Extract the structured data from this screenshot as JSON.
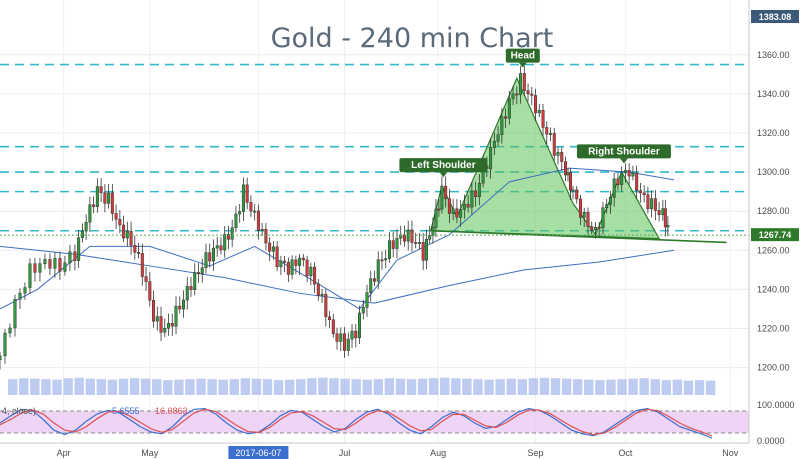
{
  "chart_data": {
    "type": "candlestick",
    "title": "Gold - 240 min Chart",
    "x_labels": [
      "Apr",
      "May",
      "2017-06-07",
      "Jul",
      "Aug",
      "Sep",
      "Oct",
      "Nov"
    ],
    "y_ticks": [
      1200,
      1220,
      1240,
      1260,
      1280,
      1300,
      1320,
      1340,
      1360
    ],
    "ylim": [
      1186,
      1388
    ],
    "price_tags": {
      "top": "1383.08",
      "last": "1267.74",
      "last_value": 1267.74
    },
    "horizontal_levels": [
      1355,
      1313,
      1300,
      1290,
      1270
    ],
    "neckline": {
      "from": [
        0.575,
        1270
      ],
      "to": [
        0.97,
        1264
      ]
    },
    "pattern_peaks": [
      {
        "x": 0.575,
        "y": 1270
      },
      {
        "x": 0.59,
        "y": 1293
      },
      {
        "x": 0.61,
        "y": 1277
      },
      {
        "x": 0.69,
        "y": 1348
      },
      {
        "x": 0.765,
        "y": 1284
      },
      {
        "x": 0.795,
        "y": 1268
      },
      {
        "x": 0.83,
        "y": 1300
      },
      {
        "x": 0.88,
        "y": 1266
      }
    ],
    "annotations": [
      {
        "label": "Left Shoulder",
        "x": 0.592,
        "y": 1300
      },
      {
        "label": "Head",
        "x": 0.698,
        "y": 1356
      },
      {
        "label": "Right Shoulder",
        "x": 0.833,
        "y": 1307
      }
    ],
    "close_path": [
      {
        "x": 0.0,
        "y": 1206
      },
      {
        "x": 0.02,
        "y": 1232
      },
      {
        "x": 0.04,
        "y": 1250
      },
      {
        "x": 0.06,
        "y": 1255
      },
      {
        "x": 0.08,
        "y": 1252
      },
      {
        "x": 0.1,
        "y": 1258
      },
      {
        "x": 0.115,
        "y": 1275
      },
      {
        "x": 0.13,
        "y": 1290
      },
      {
        "x": 0.145,
        "y": 1286
      },
      {
        "x": 0.16,
        "y": 1272
      },
      {
        "x": 0.175,
        "y": 1265
      },
      {
        "x": 0.19,
        "y": 1250
      },
      {
        "x": 0.205,
        "y": 1225
      },
      {
        "x": 0.22,
        "y": 1218
      },
      {
        "x": 0.235,
        "y": 1228
      },
      {
        "x": 0.25,
        "y": 1240
      },
      {
        "x": 0.265,
        "y": 1250
      },
      {
        "x": 0.28,
        "y": 1258
      },
      {
        "x": 0.295,
        "y": 1262
      },
      {
        "x": 0.31,
        "y": 1270
      },
      {
        "x": 0.325,
        "y": 1290
      },
      {
        "x": 0.34,
        "y": 1278
      },
      {
        "x": 0.355,
        "y": 1265
      },
      {
        "x": 0.37,
        "y": 1255
      },
      {
        "x": 0.385,
        "y": 1250
      },
      {
        "x": 0.4,
        "y": 1255
      },
      {
        "x": 0.415,
        "y": 1248
      },
      {
        "x": 0.43,
        "y": 1235
      },
      {
        "x": 0.445,
        "y": 1218
      },
      {
        "x": 0.46,
        "y": 1212
      },
      {
        "x": 0.475,
        "y": 1218
      },
      {
        "x": 0.49,
        "y": 1238
      },
      {
        "x": 0.505,
        "y": 1252
      },
      {
        "x": 0.52,
        "y": 1262
      },
      {
        "x": 0.535,
        "y": 1268
      },
      {
        "x": 0.55,
        "y": 1267
      },
      {
        "x": 0.565,
        "y": 1258
      },
      {
        "x": 0.578,
        "y": 1272
      },
      {
        "x": 0.59,
        "y": 1290
      },
      {
        "x": 0.605,
        "y": 1278
      },
      {
        "x": 0.62,
        "y": 1283
      },
      {
        "x": 0.635,
        "y": 1290
      },
      {
        "x": 0.65,
        "y": 1305
      },
      {
        "x": 0.665,
        "y": 1320
      },
      {
        "x": 0.68,
        "y": 1335
      },
      {
        "x": 0.695,
        "y": 1347
      },
      {
        "x": 0.71,
        "y": 1338
      },
      {
        "x": 0.725,
        "y": 1325
      },
      {
        "x": 0.74,
        "y": 1312
      },
      {
        "x": 0.755,
        "y": 1300
      },
      {
        "x": 0.765,
        "y": 1289
      },
      {
        "x": 0.78,
        "y": 1276
      },
      {
        "x": 0.795,
        "y": 1270
      },
      {
        "x": 0.81,
        "y": 1285
      },
      {
        "x": 0.825,
        "y": 1297
      },
      {
        "x": 0.84,
        "y": 1300
      },
      {
        "x": 0.855,
        "y": 1288
      },
      {
        "x": 0.87,
        "y": 1283
      },
      {
        "x": 0.885,
        "y": 1279
      },
      {
        "x": 0.895,
        "y": 1268
      }
    ],
    "moving_averages": [
      {
        "name": "",
        "color": "#3e6ec0",
        "points": [
          {
            "x": 0.0,
            "y": 1262
          },
          {
            "x": 0.1,
            "y": 1258
          },
          {
            "x": 0.2,
            "y": 1252
          },
          {
            "x": 0.3,
            "y": 1246
          },
          {
            "x": 0.4,
            "y": 1238
          },
          {
            "x": 0.5,
            "y": 1233
          },
          {
            "x": 0.6,
            "y": 1242
          },
          {
            "x": 0.7,
            "y": 1250
          },
          {
            "x": 0.8,
            "y": 1254
          },
          {
            "x": 0.9,
            "y": 1260
          }
        ]
      },
      {
        "name": "",
        "color": "#3e6ec0",
        "points": [
          {
            "x": 0.0,
            "y": 1230
          },
          {
            "x": 0.05,
            "y": 1240
          },
          {
            "x": 0.12,
            "y": 1262
          },
          {
            "x": 0.2,
            "y": 1262
          },
          {
            "x": 0.28,
            "y": 1252
          },
          {
            "x": 0.34,
            "y": 1262
          },
          {
            "x": 0.42,
            "y": 1244
          },
          {
            "x": 0.48,
            "y": 1230
          },
          {
            "x": 0.53,
            "y": 1255
          },
          {
            "x": 0.6,
            "y": 1268
          },
          {
            "x": 0.68,
            "y": 1295
          },
          {
            "x": 0.76,
            "y": 1302
          },
          {
            "x": 0.84,
            "y": 1300
          },
          {
            "x": 0.9,
            "y": 1296
          }
        ]
      }
    ],
    "volume_profile": [
      0.33,
      0.35,
      0.34,
      0.33,
      0.32,
      0.35,
      0.36,
      0.34,
      0.33,
      0.32,
      0.34,
      0.35,
      0.34,
      0.33,
      0.31,
      0.32,
      0.33,
      0.34,
      0.33,
      0.32,
      0.33,
      0.35,
      0.34,
      0.33,
      0.31,
      0.32,
      0.33,
      0.35,
      0.36,
      0.35,
      0.34,
      0.33,
      0.32,
      0.33,
      0.35,
      0.34,
      0.33,
      0.34,
      0.35,
      0.36,
      0.35,
      0.34,
      0.33,
      0.32,
      0.33,
      0.34,
      0.33,
      0.35,
      0.36,
      0.35,
      0.34,
      0.33,
      0.32,
      0.31,
      0.32,
      0.33,
      0.34,
      0.35,
      0.33,
      0.31,
      0.32,
      0.3,
      0.31,
      0.3
    ],
    "oscillator": {
      "header_text": "4, close)",
      "values": [
        "5.6555",
        "16.0863"
      ],
      "value_colors": [
        "#3c6fd0",
        "#e05050"
      ],
      "y_ticks": [
        "100.0000",
        "0.0000"
      ],
      "k": [
        50,
        70,
        88,
        85,
        60,
        30,
        18,
        30,
        55,
        75,
        85,
        80,
        60,
        40,
        25,
        20,
        40,
        70,
        88,
        90,
        75,
        50,
        30,
        20,
        25,
        45,
        70,
        85,
        80,
        60,
        40,
        25,
        35,
        60,
        80,
        88,
        75,
        50,
        30,
        20,
        40,
        65,
        80,
        70,
        50,
        35,
        40,
        60,
        80,
        90,
        85,
        70,
        50,
        30,
        20,
        15,
        25,
        45,
        65,
        85,
        90,
        80,
        60,
        40,
        30,
        20,
        8
      ],
      "d": [
        45,
        60,
        78,
        86,
        75,
        50,
        30,
        25,
        40,
        62,
        80,
        83,
        70,
        52,
        34,
        24,
        32,
        55,
        78,
        88,
        82,
        62,
        42,
        26,
        24,
        38,
        60,
        78,
        82,
        70,
        52,
        34,
        32,
        50,
        72,
        84,
        80,
        62,
        42,
        28,
        32,
        55,
        74,
        74,
        58,
        42,
        38,
        52,
        72,
        86,
        86,
        76,
        58,
        40,
        26,
        18,
        22,
        38,
        58,
        78,
        88,
        84,
        68,
        50,
        36,
        26,
        14
      ]
    }
  }
}
